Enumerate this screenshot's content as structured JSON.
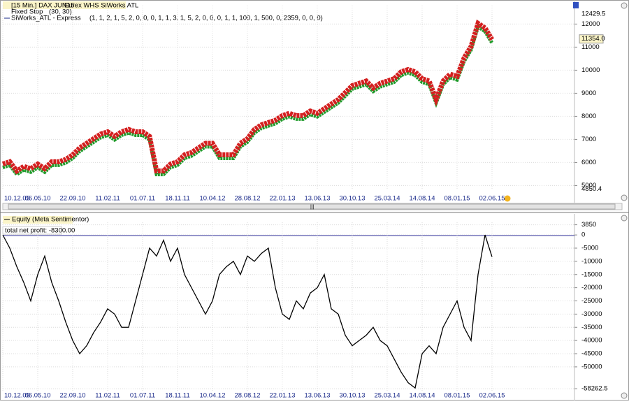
{
  "chart_data": [
    {
      "type": "line",
      "title": "[15 Min.] DAX JUN15",
      "subtitle": "Eurex WHS SiWorks ATL",
      "indicator": "Fixed Stop",
      "indicator_params": "(30, 30)",
      "categories": [
        "10.12.09",
        null,
        null,
        null,
        null,
        "06.05.10",
        null,
        null,
        null,
        null,
        "22.09.10",
        null,
        null,
        null,
        null,
        "11.02.11",
        null,
        null,
        null,
        null,
        "01.07.11",
        null,
        null,
        null,
        null,
        "18.11.11",
        null,
        null,
        null,
        null,
        "10.04.12",
        null,
        null,
        null,
        null,
        "28.08.12",
        null,
        null,
        null,
        null,
        "22.01.13",
        null,
        null,
        null,
        null,
        "13.06.13",
        null,
        null,
        null,
        null,
        "30.10.13",
        null,
        null,
        null,
        null,
        "25.03.14",
        null,
        null,
        null,
        null,
        "14.08.14",
        null,
        null,
        null,
        null,
        "08.01.15",
        null,
        null,
        null,
        null,
        "02.06.15"
      ],
      "series": [
        {
          "name": "SiWorks_ATL - Express",
          "params": "(1, 1, 2, 1, 5, 2, 0, 0, 0, 1, 1, 3, 1, 5, 2, 0, 0, 0, 1, 1, 100, 1, 500, 0, 2359, 0, 0, 0)",
          "color": "#d42020",
          "color_low": "#1f9a2a",
          "values": [
            5900,
            6000,
            5600,
            5800,
            5700,
            5900,
            5700,
            6000,
            6000,
            6100,
            6300,
            6600,
            6800,
            7000,
            7200,
            7300,
            7100,
            7300,
            7400,
            7300,
            7300,
            7100,
            5600,
            5600,
            5900,
            6000,
            6300,
            6400,
            6600,
            6800,
            6800,
            6300,
            6300,
            6300,
            6800,
            7000,
            7400,
            7600,
            7700,
            7800,
            8000,
            8100,
            8000,
            8000,
            8200,
            8100,
            8300,
            8500,
            8700,
            9000,
            9300,
            9400,
            9500,
            9200,
            9400,
            9500,
            9600,
            9900,
            10000,
            9900,
            9600,
            9500,
            8700,
            9500,
            9800,
            9700,
            10500,
            11000,
            12000,
            11800,
            11300
          ]
        }
      ],
      "ylim": [
        4800,
        12800
      ],
      "yticks": [
        5000,
        6000,
        7000,
        8000,
        9000,
        10000,
        11000,
        12000
      ],
      "price_labels": [
        12429.5,
        {
          "value": 11354,
          "label": "11354.0"
        },
        4850.4
      ],
      "grid": true
    },
    {
      "type": "line",
      "categories": [
        "10.12.09",
        null,
        null,
        null,
        null,
        "06.05.10",
        null,
        null,
        null,
        null,
        "22.09.10",
        null,
        null,
        null,
        null,
        "11.02.11",
        null,
        null,
        null,
        null,
        "01.07.11",
        null,
        null,
        null,
        null,
        "18.11.11",
        null,
        null,
        null,
        null,
        "10.04.12",
        null,
        null,
        null,
        null,
        "28.08.12",
        null,
        null,
        null,
        null,
        "22.01.13",
        null,
        null,
        null,
        null,
        "13.06.13",
        null,
        null,
        null,
        null,
        "30.10.13",
        null,
        null,
        null,
        null,
        "25.03.14",
        null,
        null,
        null,
        null,
        "14.08.14",
        null,
        null,
        null,
        null,
        "08.01.15",
        null,
        null,
        null,
        null,
        "02.06.15"
      ],
      "series": [
        {
          "name": "Equity (Meta Sentimentor)",
          "color": "#000000",
          "values": [
            0,
            -5000,
            -12000,
            -18000,
            -25000,
            -15000,
            -8000,
            -18000,
            -25000,
            -33000,
            -40000,
            -45000,
            -42000,
            -37000,
            -33000,
            -28000,
            -30000,
            -35000,
            -35000,
            -25000,
            -15000,
            -5000,
            -8000,
            -2000,
            -10000,
            -5000,
            -15000,
            -20000,
            -25000,
            -30000,
            -25000,
            -15000,
            -12000,
            -10000,
            -15000,
            -8000,
            -10000,
            -7000,
            -5000,
            -20000,
            -30000,
            -32000,
            -25000,
            -28000,
            -22000,
            -20000,
            -15000,
            -28000,
            -30000,
            -38000,
            -42000,
            -40000,
            -38000,
            -35000,
            -40000,
            -42000,
            -47000,
            -52000,
            -56000,
            -58000,
            -45000,
            -42000,
            -45000,
            -35000,
            -30000,
            -25000,
            -35000,
            -40000,
            -15000,
            0,
            -8300
          ]
        }
      ],
      "annotation": "total net profit: -8300.00",
      "ylim": [
        -59300,
        4800
      ],
      "yticks": [
        3850,
        0,
        -5000,
        -10000,
        -15000,
        -20000,
        -25000,
        -30000,
        -35000,
        -40000,
        -45000,
        -50000,
        -58262.5
      ],
      "grid": true
    }
  ]
}
